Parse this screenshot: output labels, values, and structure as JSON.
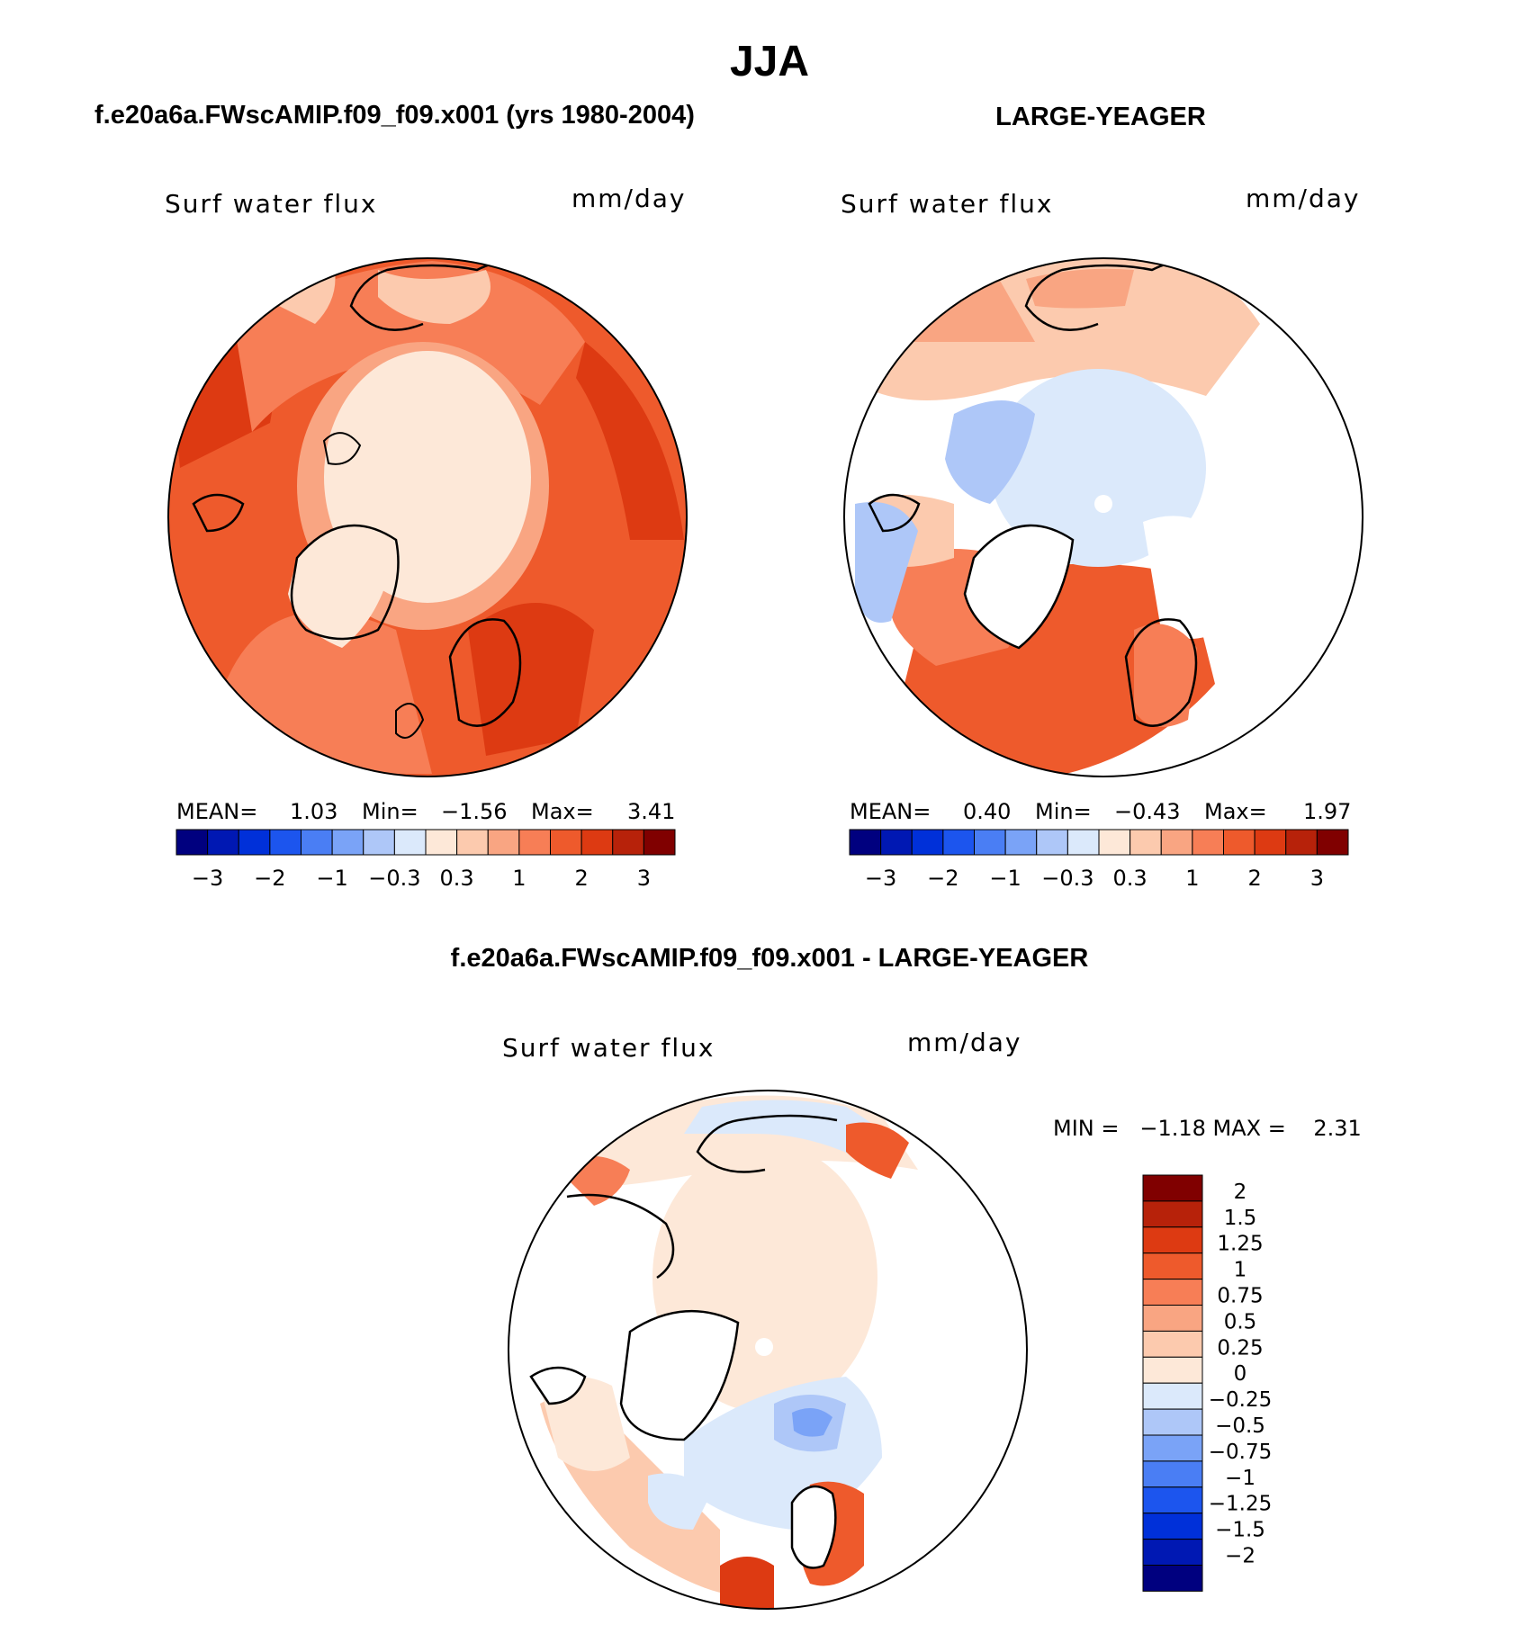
{
  "title": "JJA",
  "panels": [
    {
      "case_title": "f.e20a6a.FWscAMIP.f09_f09.x001 (yrs 1980-2004)",
      "var_label": "Surf water flux",
      "units": "mm/day",
      "stats": {
        "mean_label": "MEAN=",
        "mean": "1.03",
        "min_label": "Min=",
        "min": "−1.56",
        "max_label": "Max=",
        "max": "3.41"
      }
    },
    {
      "case_title": "LARGE-YEAGER",
      "var_label": "Surf water flux",
      "units": "mm/day",
      "stats": {
        "mean_label": "MEAN=",
        "mean": "0.40",
        "min_label": "Min=",
        "min": "−0.43",
        "max_label": "Max=",
        "max": "1.97"
      }
    }
  ],
  "colorbar_top": {
    "colors": [
      "#00007f",
      "#0018b3",
      "#0030d9",
      "#1c55ee",
      "#4a7ef4",
      "#7aa3f7",
      "#aec7f8",
      "#dbe9fb",
      "#fde8d8",
      "#fccaae",
      "#f9a582",
      "#f77e56",
      "#ee5a2c",
      "#dd3a12",
      "#b7220a",
      "#800000"
    ],
    "tick_labels": [
      "−3",
      "−2",
      "−1",
      "−0.3",
      "0.3",
      "1",
      "2",
      "3"
    ]
  },
  "diff_panel": {
    "title": "f.e20a6a.FWscAMIP.f09_f09.x001 - LARGE-YEAGER",
    "var_label": "Surf water flux",
    "units": "mm/day",
    "minmax_text": "MIN =   −1.18 MAX =    2.31"
  },
  "colorbar_diff": {
    "colors_top_to_bottom": [
      "#800000",
      "#b7220a",
      "#dd3a12",
      "#ee5a2c",
      "#f77e56",
      "#f9a582",
      "#fccaae",
      "#fde8d8",
      "#dbe9fb",
      "#aec7f8",
      "#7aa3f7",
      "#4a7ef4",
      "#1c55ee",
      "#0030d9",
      "#0018b3",
      "#00007f"
    ],
    "tick_labels": [
      "2",
      "1.5",
      "1.25",
      "1",
      "0.75",
      "0.5",
      "0.25",
      "0",
      "−0.25",
      "−0.5",
      "−0.75",
      "−1",
      "−1.25",
      "−1.5",
      "−2"
    ]
  }
}
